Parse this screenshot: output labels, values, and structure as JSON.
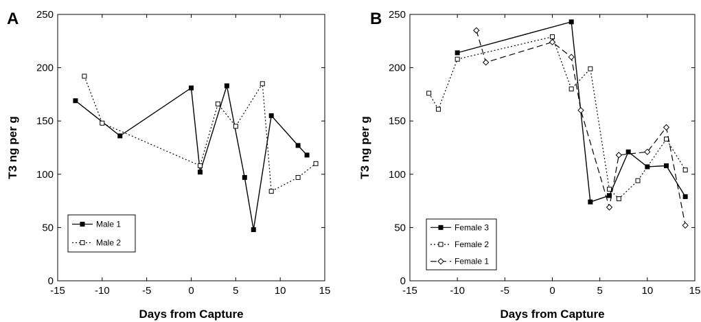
{
  "chart_data": [
    {
      "type": "line",
      "panel_label": "A",
      "xlabel": "Days from Capture",
      "ylabel": "T3 ng per g",
      "xlim": [
        -15,
        15
      ],
      "ylim": [
        0,
        250
      ],
      "xticks": [
        -15,
        -10,
        -5,
        0,
        5,
        10,
        15
      ],
      "yticks": [
        0,
        50,
        100,
        150,
        200,
        250
      ],
      "grid": false,
      "legend_position": "lower-left",
      "series": [
        {
          "name": "Male 1",
          "line_style": "solid",
          "marker": "filled-square",
          "x": [
            -13,
            -8,
            0,
            1,
            4,
            6,
            7,
            9,
            12,
            13
          ],
          "y": [
            169,
            136,
            181,
            102,
            183,
            97,
            48,
            155,
            127,
            118
          ]
        },
        {
          "name": "Male 2",
          "line_style": "dotted",
          "marker": "open-square",
          "x": [
            -12,
            -10,
            1,
            3,
            5,
            8,
            9,
            12,
            14
          ],
          "y": [
            192,
            148,
            108,
            166,
            145,
            185,
            84,
            97,
            110
          ]
        }
      ]
    },
    {
      "type": "line",
      "panel_label": "B",
      "xlabel": "Days from Capture",
      "ylabel": "T3 ng per g",
      "xlim": [
        -15,
        15
      ],
      "ylim": [
        0,
        250
      ],
      "xticks": [
        -15,
        -10,
        -5,
        0,
        5,
        10,
        15
      ],
      "yticks": [
        0,
        50,
        100,
        150,
        200,
        250
      ],
      "grid": false,
      "legend_position": "lower-left",
      "series": [
        {
          "name": "Female 3",
          "line_style": "solid",
          "marker": "filled-square",
          "x": [
            -10,
            2,
            4,
            6,
            8,
            10,
            12,
            14
          ],
          "y": [
            214,
            243,
            74,
            80,
            121,
            107,
            108,
            79
          ]
        },
        {
          "name": "Female 2",
          "line_style": "dotted",
          "marker": "open-square",
          "x": [
            -13,
            -12,
            -10,
            0,
            2,
            4,
            6,
            7,
            9,
            12,
            14
          ],
          "y": [
            176,
            161,
            208,
            229,
            180,
            199,
            86,
            77,
            94,
            133,
            104
          ]
        },
        {
          "name": "Female 1",
          "line_style": "dashed",
          "marker": "open-diamond",
          "x": [
            -8,
            -7,
            0,
            2,
            3,
            6,
            7,
            10,
            12,
            14
          ],
          "y": [
            235,
            205,
            224,
            210,
            160,
            69,
            118,
            121,
            144,
            52
          ]
        }
      ]
    }
  ]
}
